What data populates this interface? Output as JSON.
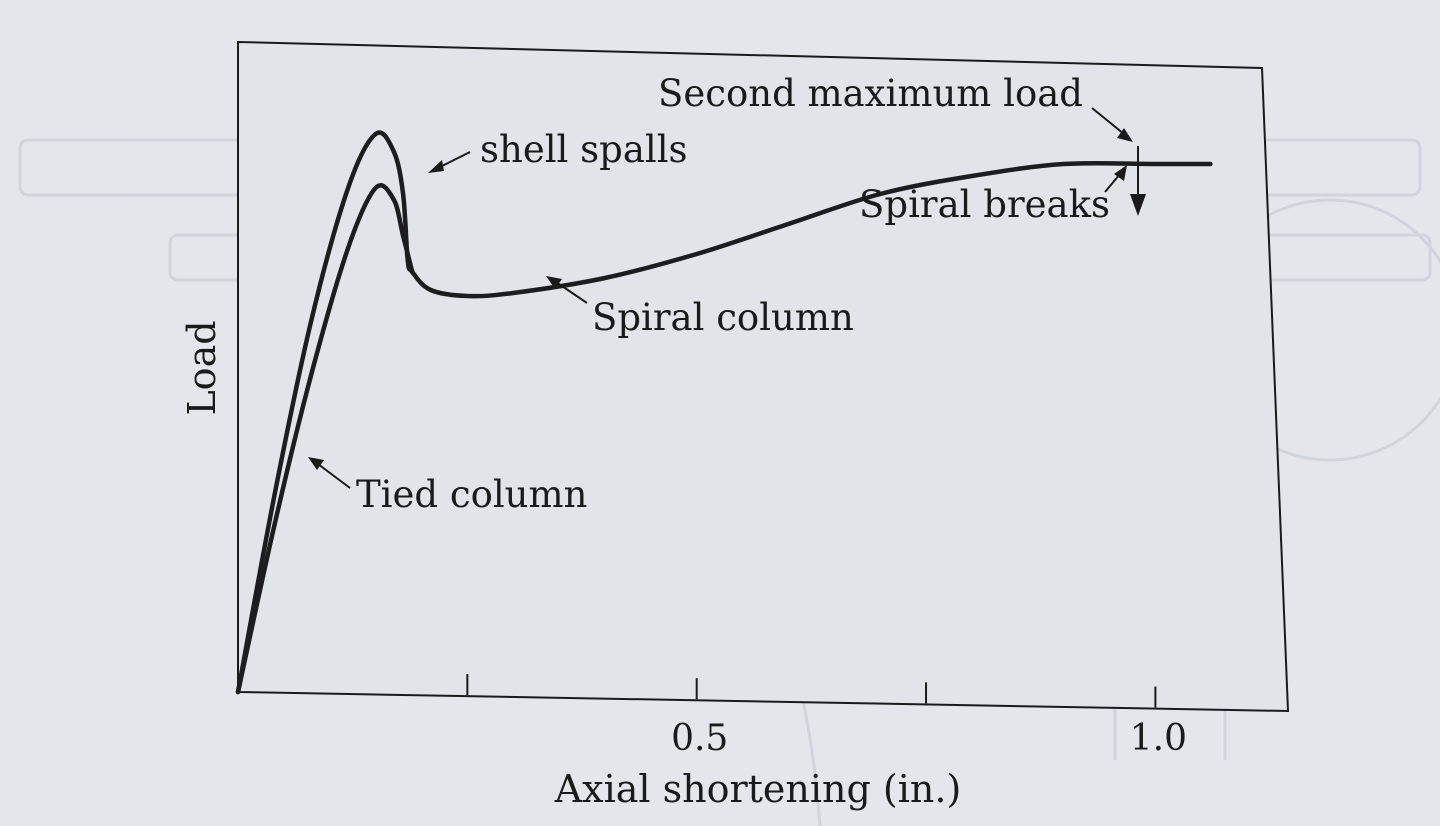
{
  "colors": {
    "background": "#e4e6ec",
    "ink": "#1a1a1a",
    "curve": "#1d1d1f"
  },
  "chart_data": {
    "type": "line",
    "title": "",
    "xlabel": "Axial shortening (in.)",
    "ylabel": "Load",
    "xlim": [
      0,
      1.15
    ],
    "ylim": [
      0,
      1.0
    ],
    "y_tick_labels": "none",
    "x_ticks": [
      0.25,
      0.5,
      0.75,
      1.0
    ],
    "x_tick_labels": [
      {
        "value": 0.5,
        "label": "0.5"
      },
      {
        "value": 1.0,
        "label": "1.0"
      }
    ],
    "grid": false,
    "series": [
      {
        "name": "Spiral column",
        "x": [
          0,
          0.04,
          0.08,
          0.12,
          0.15,
          0.17,
          0.18,
          0.185,
          0.19,
          0.21,
          0.25,
          0.3,
          0.4,
          0.5,
          0.6,
          0.7,
          0.8,
          0.9,
          1.0,
          1.06
        ],
        "y": [
          0,
          0.33,
          0.62,
          0.84,
          0.93,
          0.9,
          0.83,
          0.72,
          0.7,
          0.67,
          0.66,
          0.665,
          0.69,
          0.73,
          0.78,
          0.83,
          0.86,
          0.88,
          0.88,
          0.88
        ]
      },
      {
        "name": "Tied column",
        "x": [
          0,
          0.04,
          0.08,
          0.12,
          0.15,
          0.17,
          0.18,
          0.19
        ],
        "y": [
          0,
          0.28,
          0.53,
          0.74,
          0.84,
          0.82,
          0.76,
          0.7
        ]
      }
    ],
    "annotations": [
      {
        "text": "shell spalls",
        "x": 0.19,
        "y": 0.9
      },
      {
        "text": "Spiral column",
        "x": 0.35,
        "y": 0.64
      },
      {
        "text": "Tied column",
        "x": 0.085,
        "y": 0.36
      },
      {
        "text": "Second maximum load",
        "x": 1.06,
        "y": 0.88
      },
      {
        "text": "Spiral breaks",
        "x": 1.06,
        "y": 0.84
      }
    ]
  }
}
